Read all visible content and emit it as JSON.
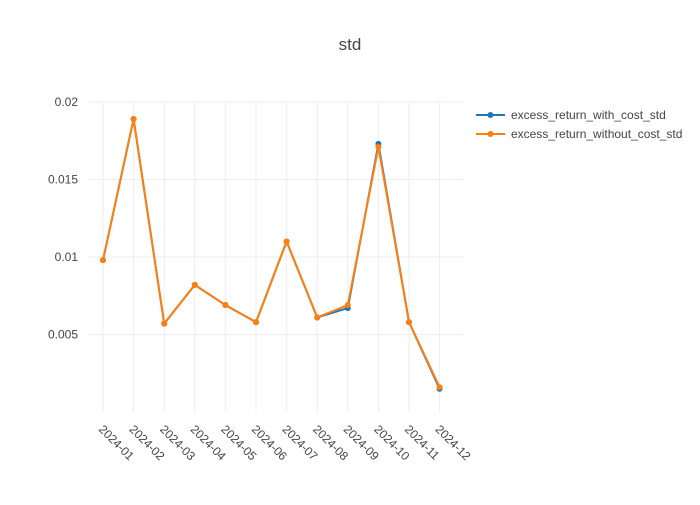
{
  "chart_data": {
    "type": "line",
    "title": "std",
    "xlabel": "",
    "ylabel": "",
    "categories": [
      "2024-01",
      "2024-02",
      "2024-03",
      "2024-04",
      "2024-05",
      "2024-06",
      "2024-07",
      "2024-08",
      "2024-09",
      "2024-10",
      "2024-11",
      "2024-12"
    ],
    "yticks": [
      "0.005",
      "0.01",
      "0.015",
      "0.02"
    ],
    "ylim": [
      0.0,
      0.02
    ],
    "grid": true,
    "legend_position": "top-right",
    "series": [
      {
        "name": "excess_return_with_cost_std",
        "color": "#1f77b4",
        "values": [
          0.0098,
          0.0189,
          0.0057,
          0.0082,
          0.0069,
          0.0058,
          0.011,
          0.0061,
          0.0067,
          0.0173,
          0.0058,
          0.0015
        ]
      },
      {
        "name": "excess_return_without_cost_std",
        "color": "#ff7f0e",
        "values": [
          0.0098,
          0.0189,
          0.0057,
          0.0082,
          0.0069,
          0.0058,
          0.011,
          0.0061,
          0.0069,
          0.0171,
          0.0058,
          0.0016
        ]
      }
    ]
  }
}
